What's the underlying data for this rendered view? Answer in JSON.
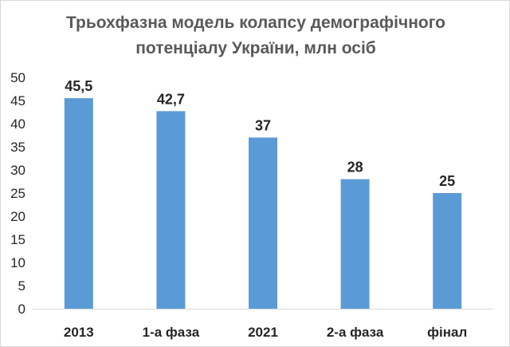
{
  "chart_data": {
    "type": "bar",
    "title": "Трьохфазна модель колапсу демографічного потенціалу України, млн осіб",
    "title_lines": [
      "Трьохфазна модель колапсу демографічного",
      "потенціалу України, млн осіб"
    ],
    "categories": [
      "2013",
      "1-а фаза",
      "2021",
      "2-а фаза",
      "фінал"
    ],
    "values": [
      45.5,
      42.7,
      37,
      28,
      25
    ],
    "data_labels": [
      "45,5",
      "42,7",
      "37",
      "28",
      "25"
    ],
    "yticks": [
      "0",
      "5",
      "10",
      "15",
      "20",
      "25",
      "30",
      "35",
      "40",
      "45",
      "50"
    ],
    "ylim": [
      0,
      50
    ],
    "grid": false,
    "bar_color": "#5b9bd5",
    "xlabel": "",
    "ylabel": ""
  }
}
